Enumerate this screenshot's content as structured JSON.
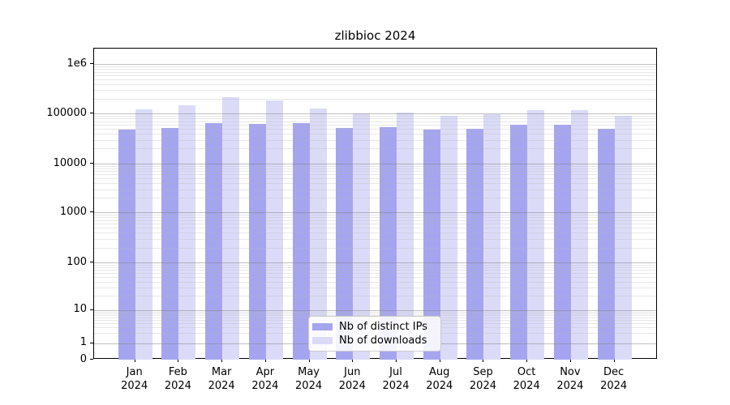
{
  "title": "zlibbioc 2024",
  "chart_data": {
    "type": "bar",
    "title": "zlibbioc 2024",
    "categories": [
      "Jan",
      "Feb",
      "Mar",
      "Apr",
      "May",
      "Jun",
      "Jul",
      "Aug",
      "Sep",
      "Oct",
      "Nov",
      "Dec"
    ],
    "category_year": "2024",
    "series": [
      {
        "name": "Nb of distinct IPs",
        "color": "#a5a5ef",
        "values": [
          47500,
          51000,
          65000,
          62500,
          63500,
          51500,
          54500,
          48000,
          49500,
          60000,
          61000,
          50000
        ]
      },
      {
        "name": "Nb of downloads",
        "color": "#dbdbf8",
        "values": [
          120000,
          148000,
          218000,
          182000,
          125000,
          101000,
          104000,
          89000,
          97000,
          117000,
          119000,
          92000
        ]
      }
    ],
    "yscale": "symlog",
    "ylim": [
      0,
      2000000
    ],
    "ytick_labels": [
      "0",
      "1",
      "10",
      "100",
      "1000",
      "10000",
      "100000",
      "1e6"
    ],
    "xlabel": "",
    "ylabel": "",
    "grid": "on",
    "legend_position": "lower center inside"
  }
}
